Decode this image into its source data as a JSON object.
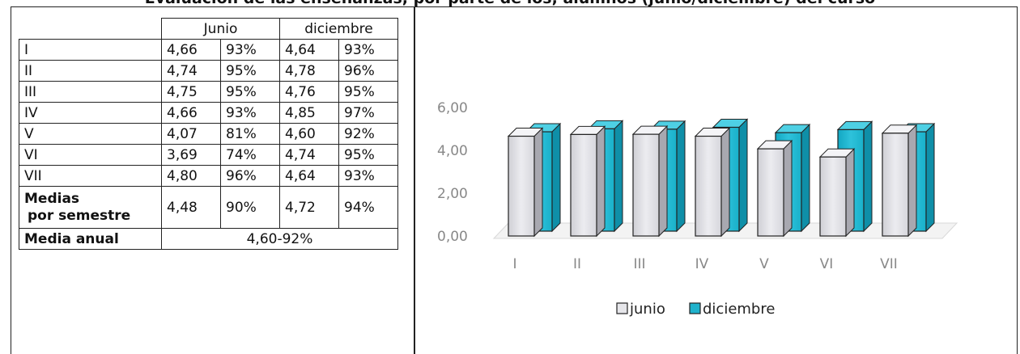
{
  "doc": {
    "title": "Evaluación de las enseñanzas, por parte de los, alumnos (junio/diciembre) del curso"
  },
  "table": {
    "headers": [
      "Junio",
      "diciembre"
    ],
    "rows": [
      {
        "label": "I",
        "jv": "4,66",
        "jp": "93%",
        "dv": "4,64",
        "dp": "93%"
      },
      {
        "label": "II",
        "jv": "4,74",
        "jp": "95%",
        "dv": "4,78",
        "dp": "96%"
      },
      {
        "label": "III",
        "jv": "4,75",
        "jp": "95%",
        "dv": "4,76",
        "dp": "95%"
      },
      {
        "label": "IV",
        "jv": "4,66",
        "jp": "93%",
        "dv": "4,85",
        "dp": "97%"
      },
      {
        "label": "V",
        "jv": "4,07",
        "jp": "81%",
        "dv": "4,60",
        "dp": "92%"
      },
      {
        "label": "VI",
        "jv": "3,69",
        "jp": "74%",
        "dv": "4,74",
        "dp": "95%"
      },
      {
        "label": "VII",
        "jv": "4,80",
        "jp": "96%",
        "dv": "4,64",
        "dp": "93%"
      }
    ],
    "medias": {
      "label_1": "Medias",
      "label_2": "por semestre",
      "jv": "4,48",
      "jp": "90%",
      "dv": "4,72",
      "dp": "94%"
    },
    "anual": {
      "label": "Media anual",
      "value": "4,60-92%"
    }
  },
  "chart_data": {
    "type": "bar",
    "categories": [
      "I",
      "II",
      "III",
      "IV",
      "V",
      "VI",
      "VII"
    ],
    "series": [
      {
        "name": "junio",
        "values": [
          4.66,
          4.74,
          4.75,
          4.66,
          4.07,
          3.69,
          4.8
        ],
        "color": "#e6e6ea"
      },
      {
        "name": "diciembre",
        "values": [
          4.64,
          4.78,
          4.76,
          4.85,
          4.6,
          4.74,
          4.64
        ],
        "color": "#1fb2cc"
      }
    ],
    "yticks": [
      "0,00",
      "2,00",
      "4,00",
      "6,00"
    ],
    "ylim": [
      0,
      6
    ],
    "legend_position": "bottom",
    "style": "3d-column"
  }
}
